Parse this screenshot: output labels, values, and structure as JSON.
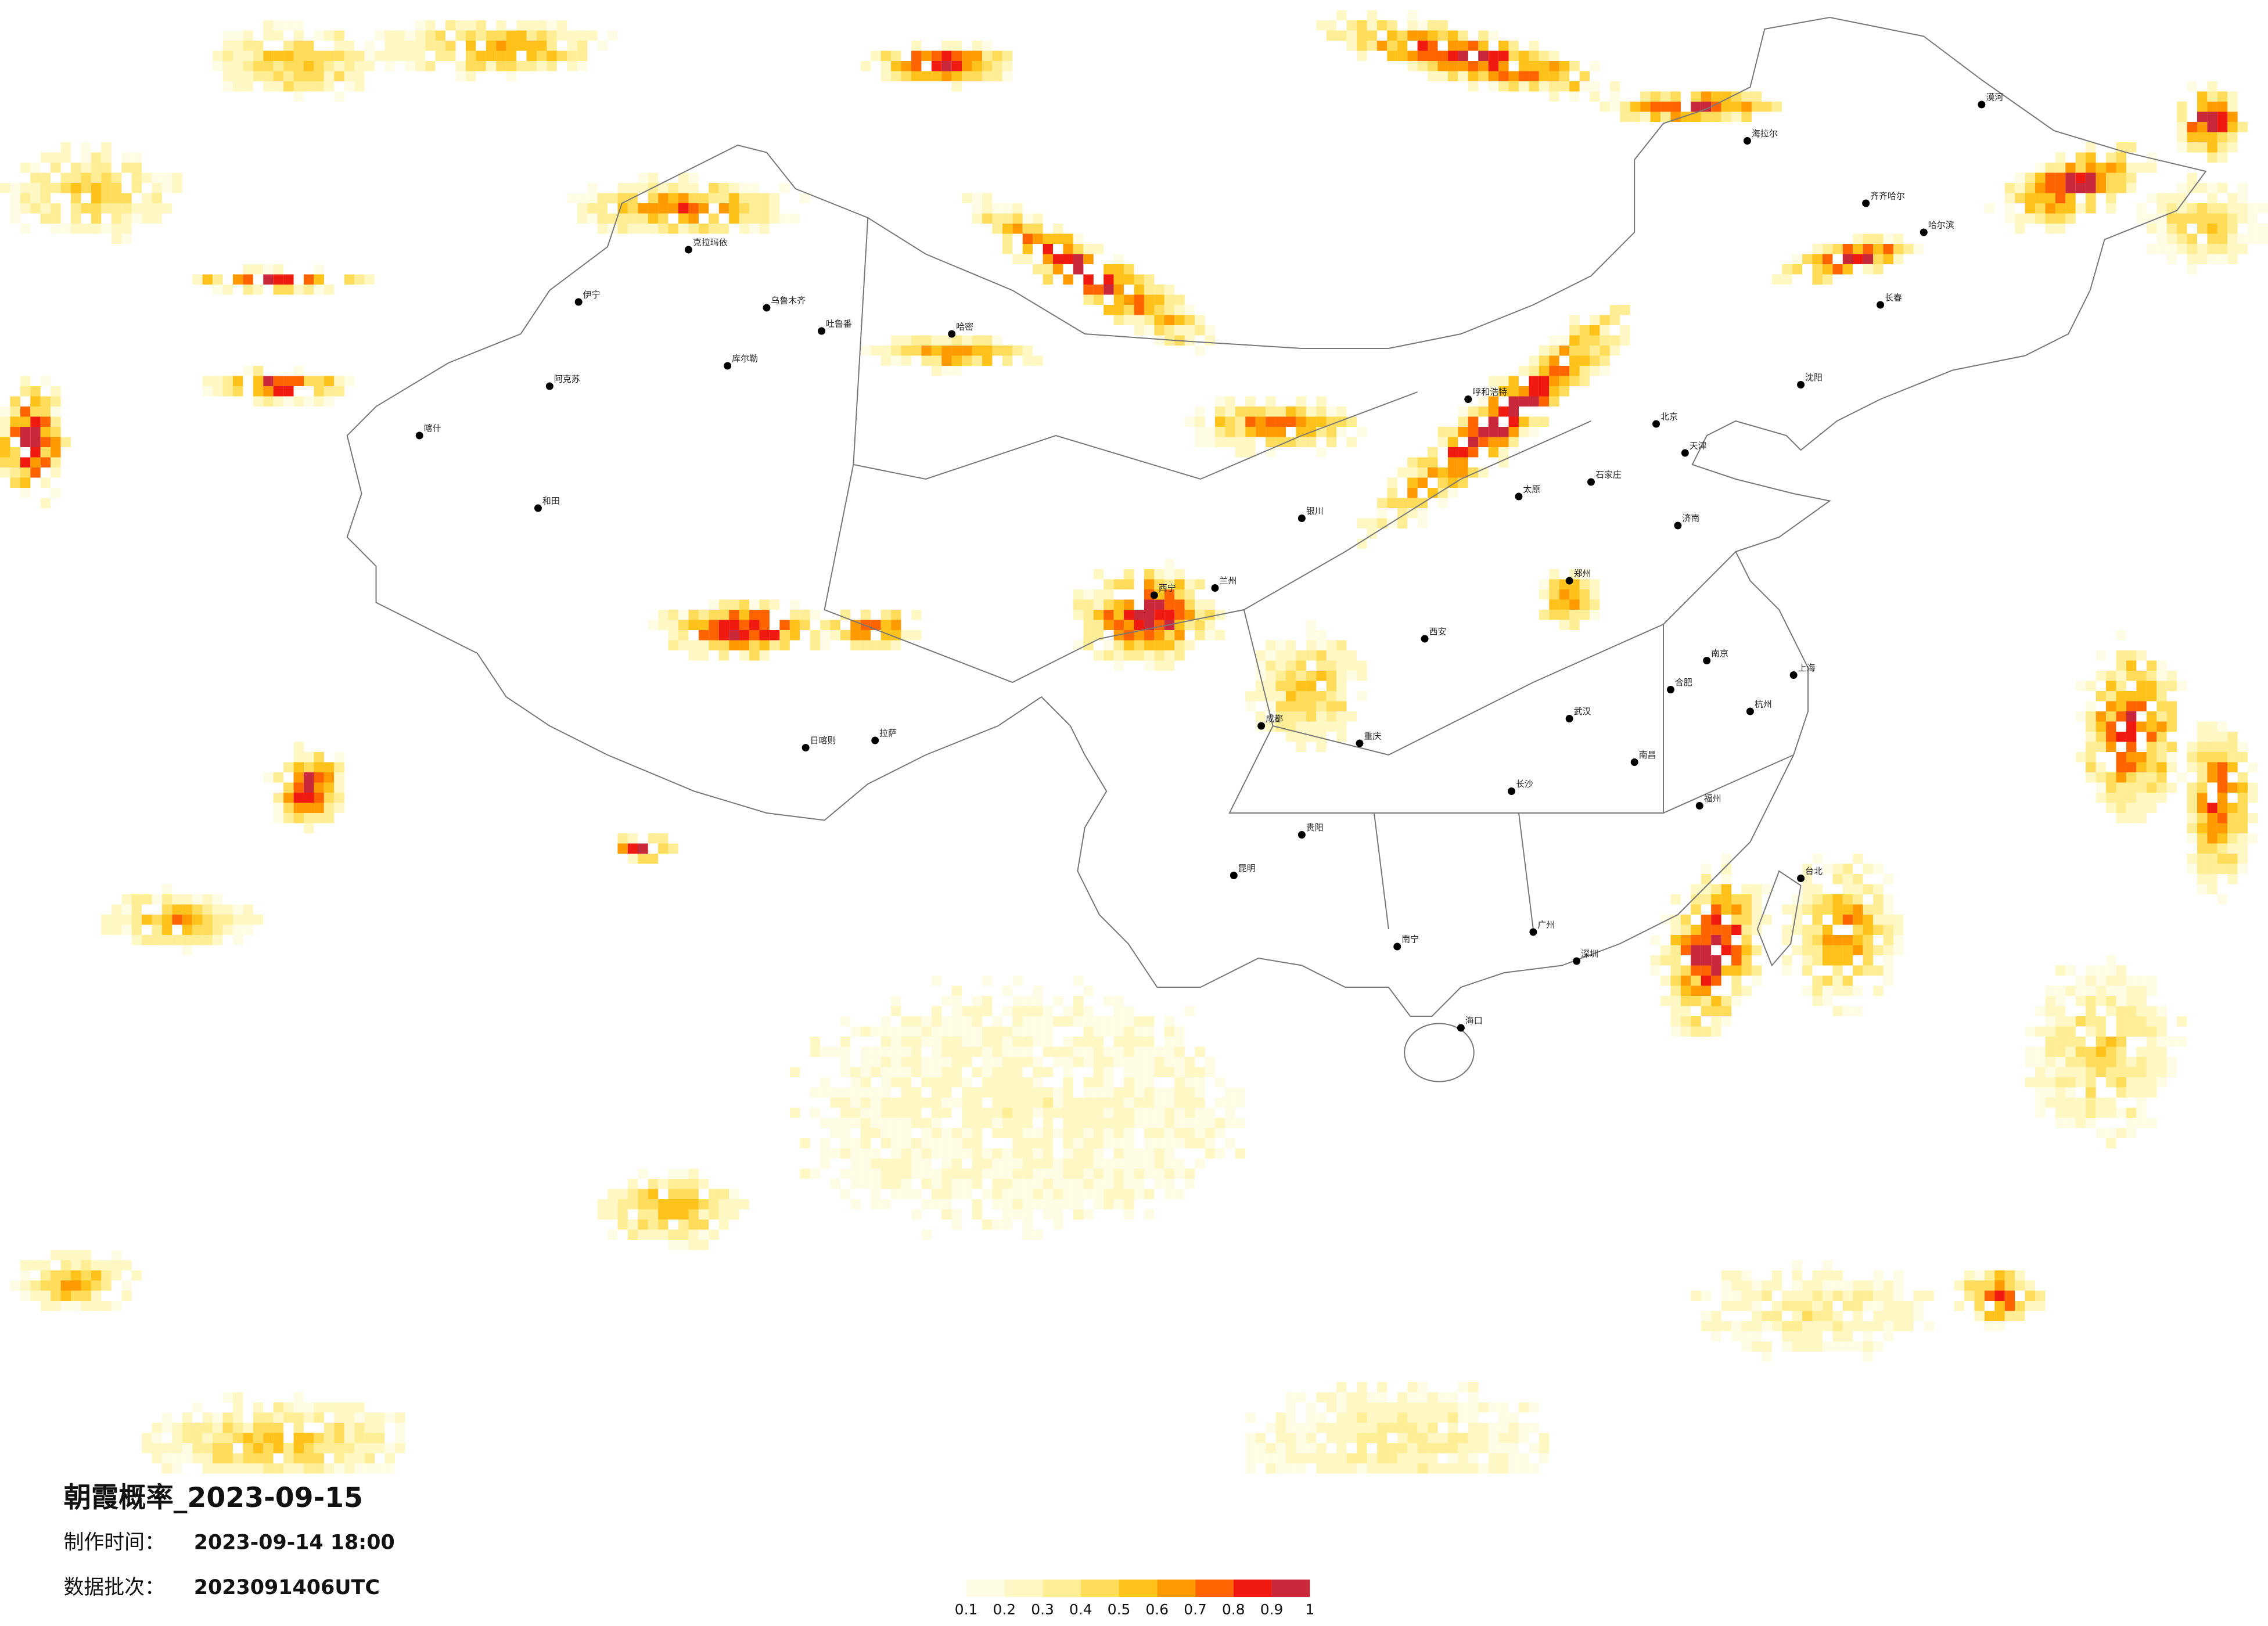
{
  "info": {
    "title": "朝霞概率_2023-09-15",
    "made_label": "制作时间：",
    "made_time": "2023-09-14 18:00",
    "batch_label": "数据批次：",
    "batch": "2023091406UTC"
  },
  "legend": {
    "ticks": [
      0.1,
      0.2,
      0.3,
      0.4,
      0.5,
      0.6,
      0.7,
      0.8,
      0.9,
      1
    ],
    "colors": [
      "#fffce6",
      "#fff8c4",
      "#ffee96",
      "#ffdc5a",
      "#ffc21a",
      "#ff9a00",
      "#ff6400",
      "#f01a10",
      "#c8283a"
    ]
  },
  "cities": [
    "漠河",
    "海拉尔",
    "齐齐哈尔",
    "哈尔滨",
    "长春",
    "沈阳",
    "呼和浩特",
    "北京",
    "天津",
    "石家庄",
    "太原",
    "济南",
    "郑州",
    "西安",
    "银川",
    "兰州",
    "西宁",
    "乌鲁木齐",
    "克拉玛依",
    "伊宁",
    "阿克苏",
    "库尔勒",
    "吐鲁番",
    "哈密",
    "喀什",
    "和田",
    "拉萨",
    "日喀则",
    "成都",
    "重庆",
    "昆明",
    "贵阳",
    "南宁",
    "广州",
    "深圳",
    "海口",
    "长沙",
    "武汉",
    "南昌",
    "合肥",
    "南京",
    "上海",
    "杭州",
    "福州",
    "台北"
  ]
}
